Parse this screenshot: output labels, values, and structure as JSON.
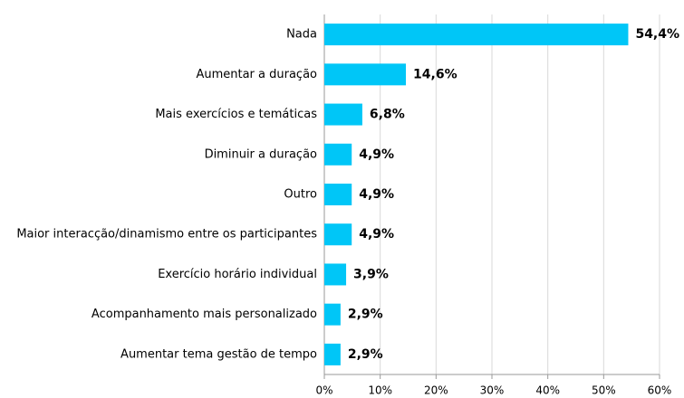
{
  "chart_data": {
    "type": "barh",
    "categories": [
      "Nada",
      "Aumentar a duração",
      "Mais exercícios e temáticas",
      "Diminuir a duração",
      "Outro",
      "Maior interacção/dinamismo entre os participantes",
      "Exercício horário individual",
      "Acompanhamento mais personalizado",
      "Aumentar tema gestão de tempo"
    ],
    "values": [
      54.4,
      14.6,
      6.8,
      4.9,
      4.9,
      4.9,
      3.9,
      2.9,
      2.9
    ],
    "value_labels": [
      "54,4%",
      "14,6%",
      "6,8%",
      "4,9%",
      "4,9%",
      "4,9%",
      "3,9%",
      "2,9%",
      "2,9%"
    ],
    "color": "#00c6f7",
    "xlim": [
      0,
      60
    ],
    "xticks": [
      {
        "value": 0,
        "label": "0%"
      },
      {
        "value": 10,
        "label": "10%"
      },
      {
        "value": 20,
        "label": "20%"
      },
      {
        "value": 30,
        "label": "30%"
      },
      {
        "value": 40,
        "label": "40%"
      },
      {
        "value": 50,
        "label": "50%"
      },
      {
        "value": 60,
        "label": "60%"
      }
    ],
    "grid": true
  }
}
